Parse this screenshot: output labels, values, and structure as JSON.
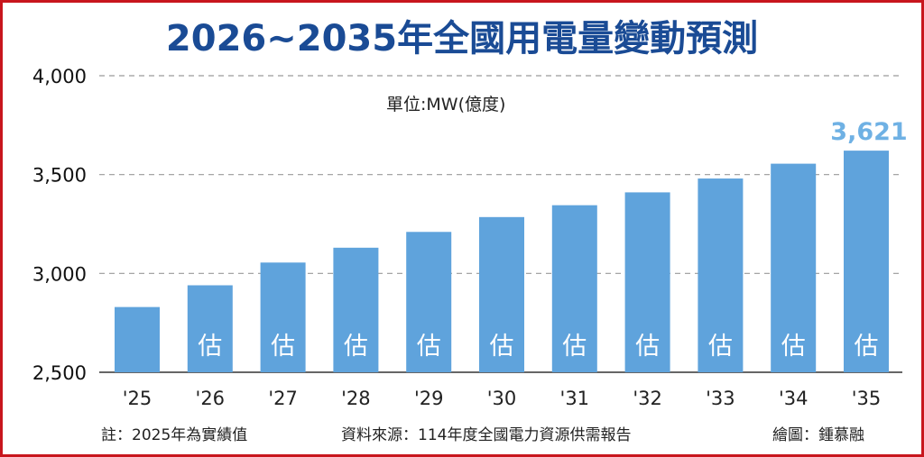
{
  "title": "2026~2035年全國用電量變動預測",
  "unit_label": "單位:MW(億度)",
  "footer": {
    "note": "註：2025年為實績值",
    "source": "資料來源：114年度全國電力資源供需報告",
    "credit": "繪圖：鍾慕融"
  },
  "colors": {
    "bar": "#5fa3dc",
    "title": "#1a4b95",
    "frame": "#c8161d",
    "data_label": "#6fb1e4",
    "grid": "#9a9a9a"
  },
  "chart_data": {
    "type": "bar",
    "categories": [
      "'25",
      "'26",
      "'27",
      "'28",
      "'29",
      "'30",
      "'31",
      "'32",
      "'33",
      "'34",
      "'35"
    ],
    "values": [
      2830,
      2940,
      3055,
      3130,
      3210,
      3285,
      3345,
      3410,
      3480,
      3555,
      3621
    ],
    "bar_notes": [
      "",
      "估",
      "估",
      "估",
      "估",
      "估",
      "估",
      "估",
      "估",
      "估",
      "估"
    ],
    "data_labels": [
      "",
      "",
      "",
      "",
      "",
      "",
      "",
      "",
      "",
      "",
      "3,621"
    ],
    "yticks": [
      "2,500",
      "3,000",
      "3,500",
      "4,000"
    ],
    "ytick_values": [
      2500,
      3000,
      3500,
      4000
    ],
    "ylim": [
      2500,
      4000
    ],
    "grid": true,
    "grid_style": "dashed horizontal",
    "legend": "none"
  }
}
